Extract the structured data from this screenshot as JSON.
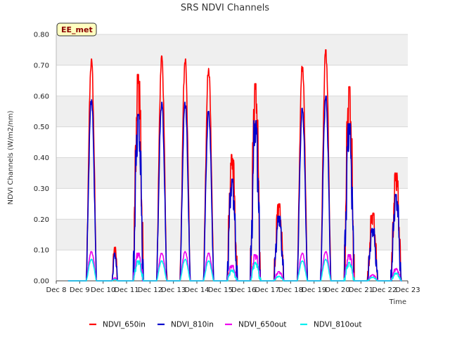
{
  "chart_data": {
    "type": "line",
    "title": "SRS NDVI Channels",
    "xlabel": "Time",
    "ylabel": "NDVI Channels (W/m2/nm)",
    "badge": "EE_met",
    "ylim": [
      0.0,
      0.8
    ],
    "yticks": [
      "0.00",
      "0.10",
      "0.20",
      "0.30",
      "0.40",
      "0.50",
      "0.60",
      "0.70",
      "0.80"
    ],
    "xlim": [
      8,
      23
    ],
    "xticks": [
      {
        "x": 8,
        "label": "Dec 8"
      },
      {
        "x": 9,
        "label": "Dec 9"
      },
      {
        "x": 10,
        "label": "Dec 10"
      },
      {
        "x": 11,
        "label": "Dec 11"
      },
      {
        "x": 12,
        "label": "Dec 12"
      },
      {
        "x": 13,
        "label": "Dec 13"
      },
      {
        "x": 14,
        "label": "Dec 14"
      },
      {
        "x": 15,
        "label": "Dec 15"
      },
      {
        "x": 16,
        "label": "Dec 16"
      },
      {
        "x": 17,
        "label": "Dec 17"
      },
      {
        "x": 18,
        "label": "Dec 18"
      },
      {
        "x": 19,
        "label": "Dec 19"
      },
      {
        "x": 20,
        "label": "Dec 20"
      },
      {
        "x": 21,
        "label": "Dec 21"
      },
      {
        "x": 22,
        "label": "Dec 22"
      },
      {
        "x": 23,
        "label": "Dec 23"
      }
    ],
    "grid": true,
    "legend_position": "bottom",
    "daily_peaks": {
      "day_centers": [
        9.5,
        10.5,
        11.5,
        12.5,
        13.5,
        14.5,
        15.5,
        16.5,
        17.5,
        18.5,
        19.5,
        20.5,
        21.5,
        22.5
      ],
      "half_widths": [
        0.22,
        0.12,
        0.22,
        0.22,
        0.22,
        0.22,
        0.22,
        0.22,
        0.22,
        0.22,
        0.22,
        0.22,
        0.22,
        0.22
      ]
    },
    "series": [
      {
        "name": "NDVI_650in",
        "color": "#ff0000",
        "peaks": [
          0.72,
          0.11,
          0.67,
          0.73,
          0.72,
          0.69,
          0.41,
          0.64,
          0.25,
          0.7,
          0.75,
          0.63,
          0.22,
          0.35
        ]
      },
      {
        "name": "NDVI_810in",
        "color": "#0000cc",
        "peaks": [
          0.59,
          0.09,
          0.54,
          0.58,
          0.58,
          0.55,
          0.33,
          0.52,
          0.21,
          0.56,
          0.6,
          0.51,
          0.17,
          0.28
        ]
      },
      {
        "name": "NDVI_650out",
        "color": "#ee00ee",
        "peaks": [
          0.095,
          0.01,
          0.09,
          0.09,
          0.095,
          0.09,
          0.05,
          0.085,
          0.03,
          0.09,
          0.095,
          0.085,
          0.02,
          0.04
        ]
      },
      {
        "name": "NDVI_810out",
        "color": "#00eeee",
        "peaks": [
          0.07,
          0.005,
          0.065,
          0.065,
          0.07,
          0.065,
          0.035,
          0.06,
          0.015,
          0.065,
          0.07,
          0.06,
          0.012,
          0.025
        ]
      }
    ]
  }
}
